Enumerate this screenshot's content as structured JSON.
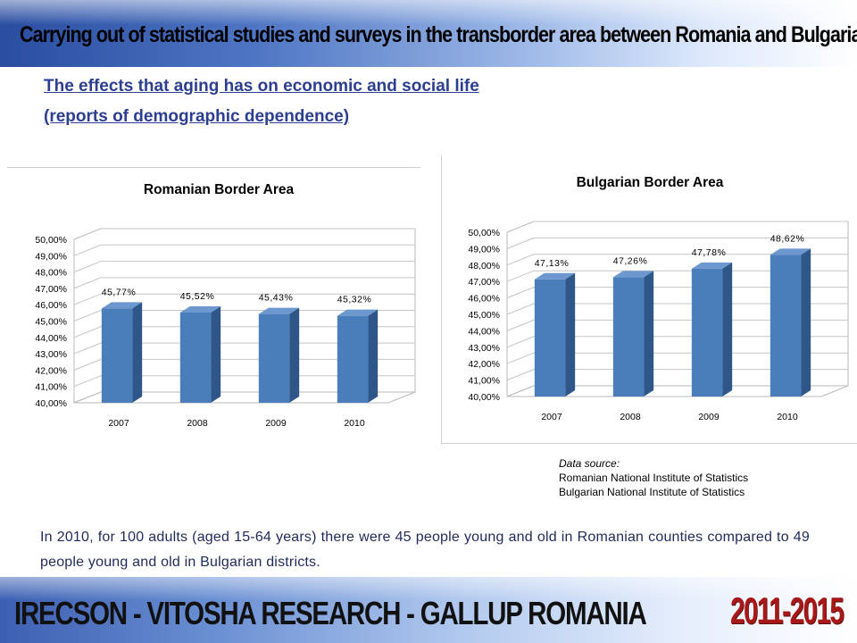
{
  "header": {
    "title": "Carrying out of statistical studies and surveys in the transborder area between Romania and Bulgaria"
  },
  "subtitle": {
    "line1": "The effects that aging has on economic and social life",
    "line2": "(reports of demographic dependence)"
  },
  "chart_data": [
    {
      "type": "bar",
      "title": "Romanian Border Area",
      "categories": [
        "2007",
        "2008",
        "2009",
        "2010"
      ],
      "values": [
        45.77,
        45.52,
        45.43,
        45.32
      ],
      "value_labels": [
        "45,77%",
        "45,52%",
        "45,43%",
        "45,32%"
      ],
      "ylim": [
        40,
        50
      ],
      "yticks": [
        "40,00%",
        "41,00%",
        "42,00%",
        "43,00%",
        "44,00%",
        "45,00%",
        "46,00%",
        "47,00%",
        "48,00%",
        "49,00%",
        "50,00%"
      ],
      "grid": true,
      "style": "3d-column",
      "colors": {
        "front": "#4a7ebb",
        "side": "#2e5689",
        "top": "#6d98cf"
      }
    },
    {
      "type": "bar",
      "title": "Bulgarian Border Area",
      "categories": [
        "2007",
        "2008",
        "2009",
        "2010"
      ],
      "values": [
        47.13,
        47.26,
        47.78,
        48.62
      ],
      "value_labels": [
        "47,13%",
        "47,26%",
        "47,78%",
        "48,62%"
      ],
      "ylim": [
        40,
        50
      ],
      "yticks": [
        "40,00%",
        "41,00%",
        "42,00%",
        "43,00%",
        "44,00%",
        "45,00%",
        "46,00%",
        "47,00%",
        "48,00%",
        "49,00%",
        "50,00%"
      ],
      "grid": true,
      "style": "3d-column",
      "colors": {
        "front": "#4a7ebb",
        "side": "#2e5689",
        "top": "#6d98cf"
      }
    }
  ],
  "source": {
    "label": "Data source:",
    "line1": "Romanian National Institute of Statistics",
    "line2": "Bulgarian National Institute of Statistics"
  },
  "conclusion": "In 2010, for 100 adults (aged 15-64 years) there were 45 people young and old in Romanian counties compared to 49 people young and old in Bulgarian districts.",
  "footer": {
    "left": "IRECSON - VITOSHA RESEARCH - GALLUP ROMANIA",
    "right": "2011-2015"
  }
}
